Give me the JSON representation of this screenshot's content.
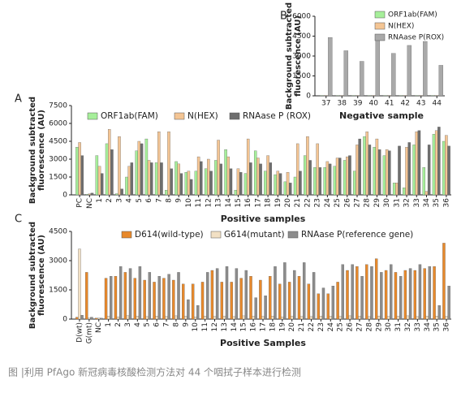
{
  "chart_data": [
    {
      "type": "bar",
      "panel": "B",
      "ylabel": [
        "Background subtracted",
        "fluorescence (AU)"
      ],
      "xlabel": "Negative sample",
      "categories": [
        "37",
        "38",
        "39",
        "40",
        "41",
        "42",
        "43",
        "44"
      ],
      "series": [
        {
          "name": "ORF1ab(FAM)",
          "color": "#a6ef9a",
          "values": [
            30,
            30,
            30,
            30,
            30,
            30,
            30,
            30
          ]
        },
        {
          "name": "N(HEX)",
          "color": "#f4c594",
          "values": [
            30,
            30,
            30,
            30,
            30,
            30,
            30,
            30
          ]
        },
        {
          "name": "RNAase P(ROX)",
          "color": "#a9a9a9",
          "values": [
            4400,
            3400,
            2600,
            4300,
            3200,
            3800,
            4100,
            2300
          ]
        }
      ],
      "ylim": [
        0,
        6000
      ],
      "yticks": [
        0,
        1500,
        3000,
        4500,
        6000
      ]
    },
    {
      "type": "bar",
      "panel": "A",
      "ylabel": [
        "Background subtracted",
        "fluorescence (AU)"
      ],
      "xlabel": "Positive samples",
      "categories": [
        "PC",
        "NC",
        "1",
        "2",
        "3",
        "4",
        "5",
        "6",
        "7",
        "8",
        "9",
        "10",
        "11",
        "12",
        "13",
        "14",
        "15",
        "16",
        "17",
        "18",
        "19",
        "20",
        "21",
        "22",
        "23",
        "24",
        "25",
        "26",
        "27",
        "28",
        "29",
        "30",
        "31",
        "32",
        "33",
        "34",
        "35",
        "36"
      ],
      "series": [
        {
          "name": "ORF1ab(FAM)",
          "color": "#a6ef9a",
          "values": [
            4000,
            50,
            3300,
            4300,
            100,
            1500,
            3700,
            4700,
            2700,
            400,
            2800,
            1900,
            2000,
            2200,
            2900,
            3800,
            400,
            1800,
            3700,
            2000,
            1700,
            1100,
            1500,
            3300,
            2300,
            2300,
            2400,
            2900,
            2000,
            4900,
            4000,
            3300,
            1000,
            600,
            4200,
            2300,
            5100,
            4500
          ]
        },
        {
          "name": "N(HEX)",
          "color": "#f4c594",
          "values": [
            4400,
            80,
            2400,
            5500,
            4900,
            2400,
            4500,
            2900,
            5300,
            5300,
            2600,
            2000,
            3200,
            3000,
            4600,
            3200,
            2200,
            4700,
            3100,
            3300,
            2000,
            1900,
            4300,
            4900,
            4300,
            2800,
            3100,
            3200,
            4200,
            5300,
            4700,
            3800,
            1000,
            4000,
            5300,
            300,
            5400,
            5000
          ]
        },
        {
          "name": "RNAase P (ROX)",
          "color": "#6e6e6e",
          "values": [
            3300,
            150,
            1800,
            3800,
            500,
            2700,
            4300,
            2700,
            2700,
            2200,
            1800,
            1300,
            2800,
            2000,
            2600,
            2200,
            1900,
            2700,
            2600,
            2700,
            1800,
            1000,
            2000,
            2900,
            2300,
            2600,
            3100,
            3300,
            4700,
            4200,
            3800,
            3700,
            4100,
            4400,
            5400,
            4200,
            5700,
            4100
          ]
        }
      ],
      "ylim": [
        0,
        7500
      ],
      "yticks": [
        0,
        1500,
        3000,
        4500,
        6000,
        7500
      ]
    },
    {
      "type": "bar",
      "panel": "C",
      "ylabel": [
        "Background subtracted",
        "fluorescence (AU)"
      ],
      "xlabel": "Positive Samples",
      "categories": [
        "D(wt)",
        "G(mt)",
        "NC",
        "1",
        "2",
        "3",
        "4",
        "5",
        "6",
        "7",
        "8",
        "9",
        "10",
        "11",
        "12",
        "13",
        "14",
        "15",
        "16",
        "17",
        "18",
        "19",
        "20",
        "21",
        "22",
        "23",
        "24",
        "25",
        "26",
        "27",
        "28",
        "29",
        "30",
        "31",
        "32",
        "33",
        "34",
        "35",
        "36"
      ],
      "series": [
        {
          "name": "D614(wild-type)",
          "color": "#e8892b",
          "values": [
            100,
            2400,
            50,
            2100,
            2200,
            2400,
            2100,
            2000,
            1900,
            2100,
            2000,
            1800,
            1800,
            1900,
            2500,
            1900,
            1900,
            2100,
            2200,
            2000,
            2200,
            1800,
            1900,
            2200,
            1800,
            1300,
            1300,
            1900,
            2500,
            2700,
            2800,
            3100,
            2500,
            2400,
            2500,
            2500,
            2600,
            2700,
            3900
          ]
        },
        {
          "name": "G614(mutant)",
          "color": "#f2e0c4",
          "values": [
            3600,
            50,
            50,
            150,
            120,
            180,
            150,
            130,
            160,
            140,
            170,
            150,
            120,
            160,
            140,
            150,
            130,
            170,
            150,
            140,
            160,
            120,
            150,
            140,
            130,
            160,
            150,
            140,
            170,
            150,
            130,
            160,
            140,
            150,
            170,
            130,
            150,
            160,
            140
          ]
        },
        {
          "name": "RNAase P(reference gene)",
          "color": "#8c8c8c",
          "values": [
            200,
            100,
            50,
            2200,
            2700,
            2600,
            2700,
            2400,
            2200,
            2300,
            2400,
            1000,
            700,
            2400,
            2600,
            2700,
            2600,
            2500,
            1100,
            1200,
            2700,
            2900,
            2500,
            2900,
            2400,
            1600,
            1700,
            2800,
            2800,
            2200,
            2700,
            2400,
            2800,
            2200,
            2600,
            2800,
            2700,
            700,
            1700
          ]
        }
      ],
      "ylim": [
        0,
        4500
      ],
      "yticks": [
        0,
        1500,
        3000,
        4500
      ]
    }
  ],
  "caption": "图 |利用 PfAgo 新冠病毒核酸检测方法对 44 个咽拭子样本进行检测"
}
